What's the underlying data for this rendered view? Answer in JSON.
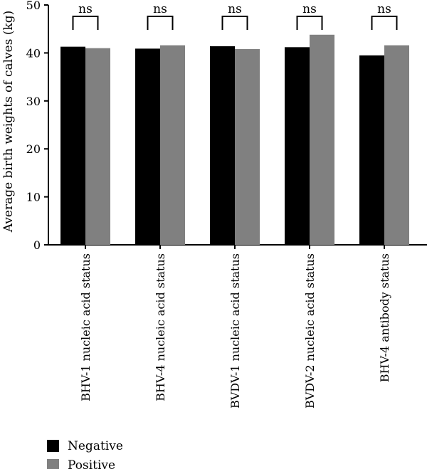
{
  "chart_data": {
    "type": "bar",
    "title": "",
    "xlabel": "",
    "ylabel": "Average birth weights of calves (kg)",
    "ylim": [
      0,
      50
    ],
    "yticks": [
      0,
      10,
      20,
      30,
      40,
      50
    ],
    "categories": [
      "BHV-1 nucleic acid status",
      "BHV-4 nucleic acid status",
      "BVDV-1 nucleic acid status",
      "BVDV-2 nucleic acid status",
      "BHV-4 antibody status"
    ],
    "series": [
      {
        "name": "Negative",
        "color": "#000000",
        "values": [
          41.3,
          40.9,
          41.4,
          41.2,
          39.5
        ]
      },
      {
        "name": "Positive",
        "color": "#808080",
        "values": [
          41.0,
          41.6,
          40.8,
          43.8,
          41.6
        ]
      }
    ],
    "significance": [
      "ns",
      "ns",
      "ns",
      "ns",
      "ns"
    ],
    "legend_position": "bottom-left",
    "grid": false
  }
}
